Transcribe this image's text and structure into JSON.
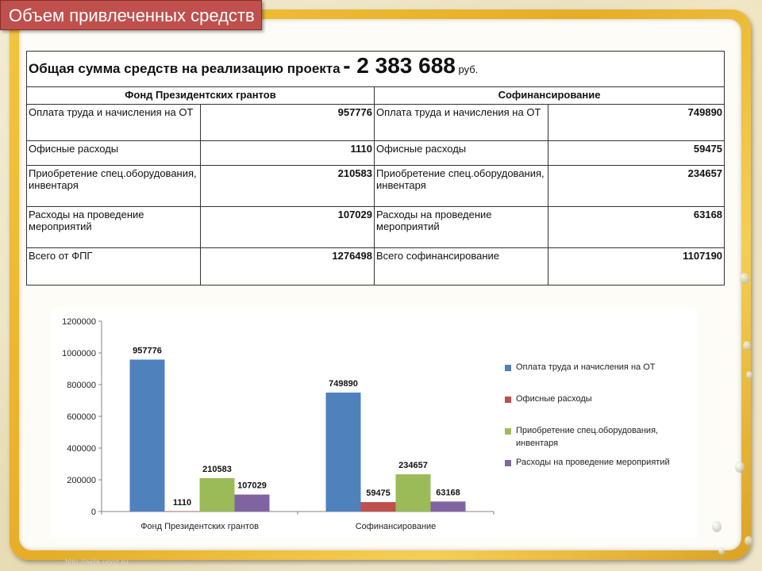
{
  "slide": {
    "title": "Объем привлеченных средств",
    "watermark": "http://aida.ucoz.ru"
  },
  "table": {
    "total_label": "Общая сумма средств на реализацию проекта",
    "total_value": "- 2 383 688",
    "total_unit": "руб.",
    "col1_header": "Фонд Президентских грантов",
    "col2_header": "Софинансирование",
    "rows": [
      {
        "label1": "Оплата труда и начисления на ОТ",
        "value1": "957776",
        "label2": "Оплата труда и начисления на ОТ",
        "value2": "749890"
      },
      {
        "label1": "Офисные расходы",
        "value1": "1110",
        "label2": "Офисные расходы",
        "value2": "59475"
      },
      {
        "label1": "Приобретение спец.оборудования, инвентаря",
        "value1": "210583",
        "label2": "Приобретение спец.оборудования, инвентаря",
        "value2": "234657"
      },
      {
        "label1": "Расходы на проведение мероприятий",
        "value1": "107029",
        "label2": "Расходы на проведение мероприятий",
        "value2": "63168"
      },
      {
        "label1": "Всего от ФПГ",
        "value1": "1276498",
        "label2": "Всего софинансирование",
        "value2": "1107190"
      }
    ]
  },
  "chart_data": {
    "type": "bar",
    "categories": [
      "Фонд Президентских  грантов",
      "Софинансирование"
    ],
    "series": [
      {
        "name": "Оплата труда и начисления на ОТ",
        "values": [
          957776,
          749890
        ],
        "color": "#4f81bd"
      },
      {
        "name": "Офисные расходы",
        "values": [
          1110,
          59475
        ],
        "color": "#c0504d"
      },
      {
        "name": "Приобретение  спец.оборудования, инвентаря",
        "values": [
          210583,
          234657
        ],
        "color": "#9bbb59"
      },
      {
        "name": "Расходы на проведение  мероприятий",
        "values": [
          107029,
          63168
        ],
        "color": "#8064a2"
      }
    ],
    "yticks": [
      "0",
      "200000",
      "400000",
      "600000",
      "800000",
      "1000000",
      "1200000"
    ],
    "ylim": [
      0,
      1200000
    ],
    "grid": false,
    "legend_position": "right",
    "data_labels": true
  }
}
